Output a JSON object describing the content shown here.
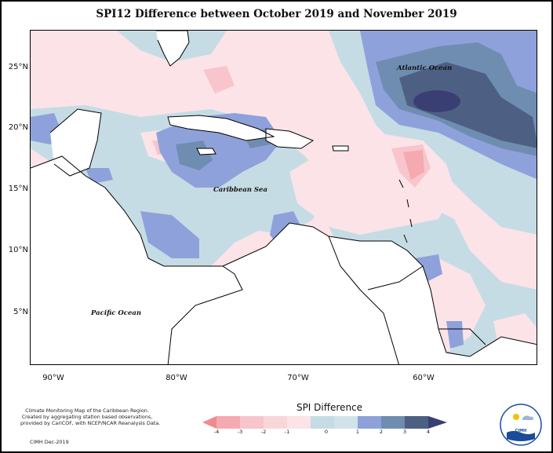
{
  "title": "SPI12 Difference between October 2019 and November 2019",
  "map": {
    "lat_ticks": [
      "25°N",
      "20°N",
      "15°N",
      "10°N",
      "5°N"
    ],
    "lon_ticks": [
      "90°W",
      "80°W",
      "70°W",
      "60°W"
    ],
    "labels": {
      "atlantic": "Atlantic Ocean",
      "caribbean": "Caribbean Sea",
      "pacific": "Pacific Ocean"
    },
    "colors": {
      "m4": "#f4888f",
      "m3": "#f5a9b0",
      "m2": "#f7c5cb",
      "m1": "#fbe3e8",
      "p0": "#c5dce4",
      "p1": "#8fa1db",
      "p2": "#6f8db0",
      "p3": "#4d6084",
      "p4": "#3a3f73",
      "land": "#ffffff"
    }
  },
  "colorbar": {
    "title": "SPI Difference",
    "ticks": [
      "-4",
      "-3",
      "-2",
      "-1",
      "0",
      "1",
      "2",
      "3",
      "4"
    ]
  },
  "credit": {
    "lines": [
      "Climate Monitoring Map of the Caribbean Region.",
      "Created by aggregating station based observations,",
      "provided by CariCOF, with NCEP/NCAR Reanalysis Data."
    ],
    "date": "CIMH Dec-2019"
  },
  "logo": {
    "text": "CIMH"
  }
}
